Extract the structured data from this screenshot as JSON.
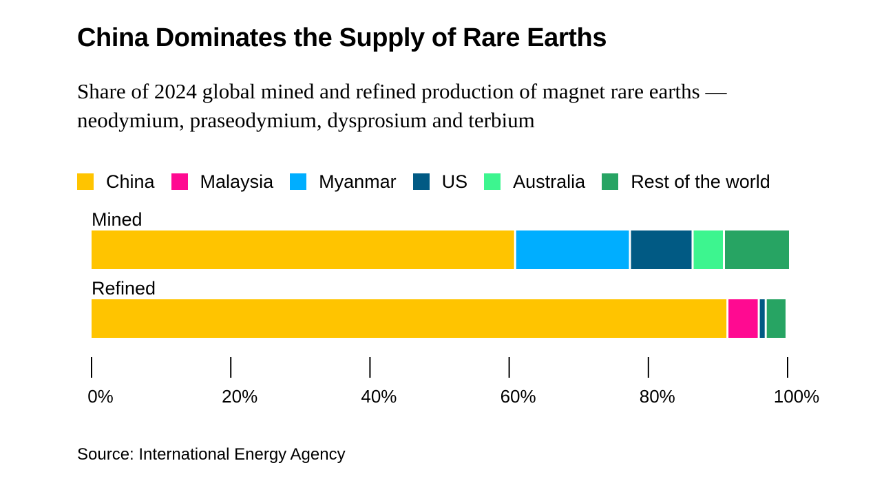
{
  "title": "China Dominates the Supply of Rare Earths",
  "subtitle": "Share of 2024 global mined and refined production of magnet rare earths — neodymium, praseodymium, dysprosium and terbium",
  "source": "Source: International Energy Agency",
  "legend": [
    {
      "name": "China",
      "color": "#FFC400"
    },
    {
      "name": "Malaysia",
      "color": "#FF0A91"
    },
    {
      "name": "Myanmar",
      "color": "#00AEFF"
    },
    {
      "name": "US",
      "color": "#015A84"
    },
    {
      "name": "Australia",
      "color": "#3DF58F"
    },
    {
      "name": "Rest of the world",
      "color": "#27A463"
    }
  ],
  "chart_data": {
    "type": "bar",
    "orientation": "horizontal",
    "stacked": true,
    "title": "China Dominates the Supply of Rare Earths",
    "categories": [
      "Mined",
      "Refined"
    ],
    "series": [
      {
        "name": "China",
        "color": "#FFC400",
        "values": [
          61,
          91.5
        ]
      },
      {
        "name": "Malaysia",
        "color": "#FF0A91",
        "values": [
          0,
          4.5
        ]
      },
      {
        "name": "Myanmar",
        "color": "#00AEFF",
        "values": [
          16.5,
          0
        ]
      },
      {
        "name": "US",
        "color": "#015A84",
        "values": [
          9,
          1
        ]
      },
      {
        "name": "Australia",
        "color": "#3DF58F",
        "values": [
          4.5,
          0
        ]
      },
      {
        "name": "Rest of the world",
        "color": "#27A463",
        "values": [
          9.5,
          3
        ]
      }
    ],
    "xlim": [
      0,
      100
    ],
    "ticks": [
      0,
      20,
      40,
      60,
      80,
      100
    ],
    "tick_labels": [
      "0%",
      "20%",
      "40%",
      "60%",
      "80%",
      "100%"
    ],
    "xlabel": "",
    "ylabel": ""
  }
}
